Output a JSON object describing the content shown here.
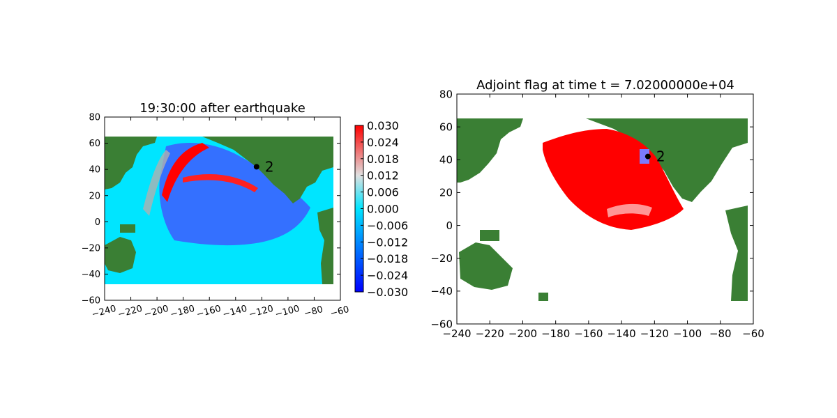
{
  "chart_data": [
    {
      "type": "heatmap",
      "title": "19:30:00 after earthquake",
      "xlabel": "",
      "ylabel": "",
      "xlim": [
        -240,
        -60
      ],
      "ylim": [
        -60,
        80
      ],
      "xticks": [
        "−240",
        "−220",
        "−200",
        "−180",
        "−160",
        "−140",
        "−120",
        "−100",
        "−80",
        "−60"
      ],
      "yticks": [
        "80",
        "60",
        "40",
        "20",
        "0",
        "−20",
        "−40",
        "−60"
      ],
      "data_extent": {
        "lon": [
          -240,
          -65
        ],
        "lat": [
          -47,
          65
        ]
      },
      "colorbar": {
        "ticks": [
          "0.030",
          "0.024",
          "0.018",
          "0.012",
          "0.006",
          "0.000",
          "−0.006",
          "−0.012",
          "−0.018",
          "−0.024",
          "−0.030"
        ],
        "range": [
          -0.03,
          0.03
        ],
        "colors": [
          "#0000ff",
          "#00e5ff",
          "#e0e0e0",
          "#ff0000"
        ]
      },
      "ocean_color": "#00e5ff",
      "land_color": "#3a7f34",
      "gauge": {
        "label": "2",
        "lon": -124,
        "lat": 42
      }
    },
    {
      "type": "heatmap",
      "title": "Adjoint flag at time t = 7.02000000e+04",
      "xlabel": "",
      "ylabel": "",
      "xlim": [
        -240,
        -60
      ],
      "ylim": [
        -60,
        80
      ],
      "xticks": [
        "−240",
        "−220",
        "−200",
        "−180",
        "−160",
        "−140",
        "−120",
        "−100",
        "−80",
        "−60"
      ],
      "yticks": [
        "80",
        "60",
        "40",
        "20",
        "0",
        "−20",
        "−40",
        "−60"
      ],
      "data_extent": {
        "lon": [
          -240,
          -65
        ],
        "lat": [
          -47,
          65
        ]
      },
      "flag_color": "#ff0000",
      "land_color": "#3a7f34",
      "source_box_color": "#7b7bff",
      "gauge": {
        "label": "2",
        "lon": -124,
        "lat": 42
      }
    }
  ]
}
